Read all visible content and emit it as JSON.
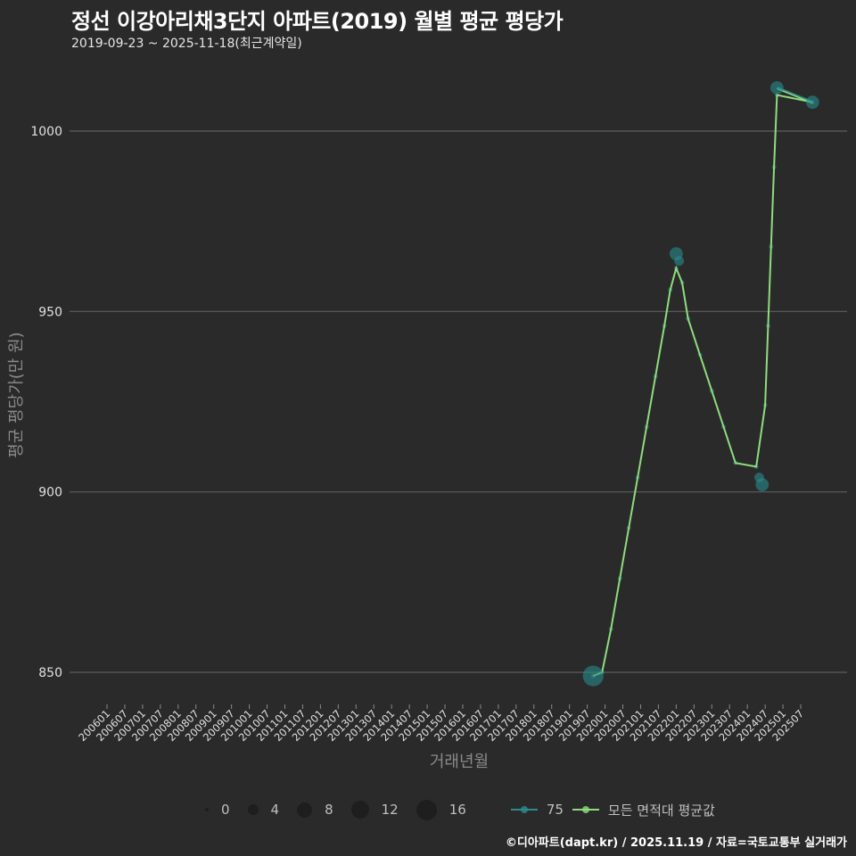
{
  "header": {
    "title": "정선 이강아리채3단지 아파트(2019) 월별 평균 평당가",
    "subtitle": "2019-09-23 ~ 2025-11-18(최근계약일)"
  },
  "axes": {
    "ylabel": "평균 평당가(만 원)",
    "xlabel": "거래년월"
  },
  "legend": {
    "size_items": [
      {
        "label": "0",
        "size": 4
      },
      {
        "label": "4",
        "size": 12
      },
      {
        "label": "8",
        "size": 17
      },
      {
        "label": "12",
        "size": 20
      },
      {
        "label": "16",
        "size": 23
      }
    ],
    "series": [
      {
        "label": "75",
        "color": "#2a8c8c"
      },
      {
        "label": "모든 면적대 평균값",
        "color": "#8fdc7e"
      }
    ]
  },
  "footer": {
    "credit": "©디아파트(dapt.kr) / 2025.11.19 / 자료=국토교통부 실거래가"
  },
  "chart_data": {
    "type": "line",
    "title": "정선 이강아리채3단지 아파트(2019) 월별 평균 평당가",
    "subtitle": "2019-09-23 ~ 2025-11-18(최근계약일)",
    "xlabel": "거래년월",
    "ylabel": "평균 평당가(만 원)",
    "x_ticks": [
      "200601",
      "200607",
      "200701",
      "200707",
      "200801",
      "200807",
      "200901",
      "200907",
      "201001",
      "201007",
      "201101",
      "201107",
      "201201",
      "201207",
      "201301",
      "201307",
      "201401",
      "201407",
      "201501",
      "201507",
      "201601",
      "201607",
      "201701",
      "201707",
      "201801",
      "201807",
      "201901",
      "201907",
      "202001",
      "202007",
      "202101",
      "202107",
      "202201",
      "202207",
      "202301",
      "202307",
      "202401",
      "202407",
      "202501",
      "202507"
    ],
    "y_ticks": [
      850,
      900,
      950,
      1000
    ],
    "ylim": [
      838,
      1018
    ],
    "grid": true,
    "legend_position": "bottom",
    "series": [
      {
        "name": "75",
        "color": "#2a8c8c",
        "points": [
          {
            "x": "201909",
            "y": 849,
            "count": 16
          },
          {
            "x": "202201",
            "y": 966,
            "count": 5
          },
          {
            "x": "202202",
            "y": 964,
            "count": 2
          },
          {
            "x": "202405",
            "y": 904,
            "count": 2
          },
          {
            "x": "202406",
            "y": 902,
            "count": 5
          },
          {
            "x": "202411",
            "y": 1012,
            "count": 5
          },
          {
            "x": "202511",
            "y": 1008,
            "count": 5
          }
        ]
      },
      {
        "name": "모든 면적대 평균값",
        "color": "#8fdc7e",
        "points": [
          {
            "x": "201909",
            "y": 849
          },
          {
            "x": "201912",
            "y": 850
          },
          {
            "x": "202003",
            "y": 862
          },
          {
            "x": "202006",
            "y": 876
          },
          {
            "x": "202009",
            "y": 890
          },
          {
            "x": "202012",
            "y": 904
          },
          {
            "x": "202103",
            "y": 918
          },
          {
            "x": "202106",
            "y": 932
          },
          {
            "x": "202109",
            "y": 946
          },
          {
            "x": "202111",
            "y": 956
          },
          {
            "x": "202201",
            "y": 962
          },
          {
            "x": "202203",
            "y": 958
          },
          {
            "x": "202205",
            "y": 948
          },
          {
            "x": "202209",
            "y": 938
          },
          {
            "x": "202301",
            "y": 928
          },
          {
            "x": "202305",
            "y": 918
          },
          {
            "x": "202309",
            "y": 908
          },
          {
            "x": "202404",
            "y": 907
          },
          {
            "x": "202407",
            "y": 924
          },
          {
            "x": "202408",
            "y": 946
          },
          {
            "x": "202409",
            "y": 968
          },
          {
            "x": "202410",
            "y": 990
          },
          {
            "x": "202411",
            "y": 1010
          },
          {
            "x": "202511",
            "y": 1008
          }
        ]
      }
    ]
  }
}
